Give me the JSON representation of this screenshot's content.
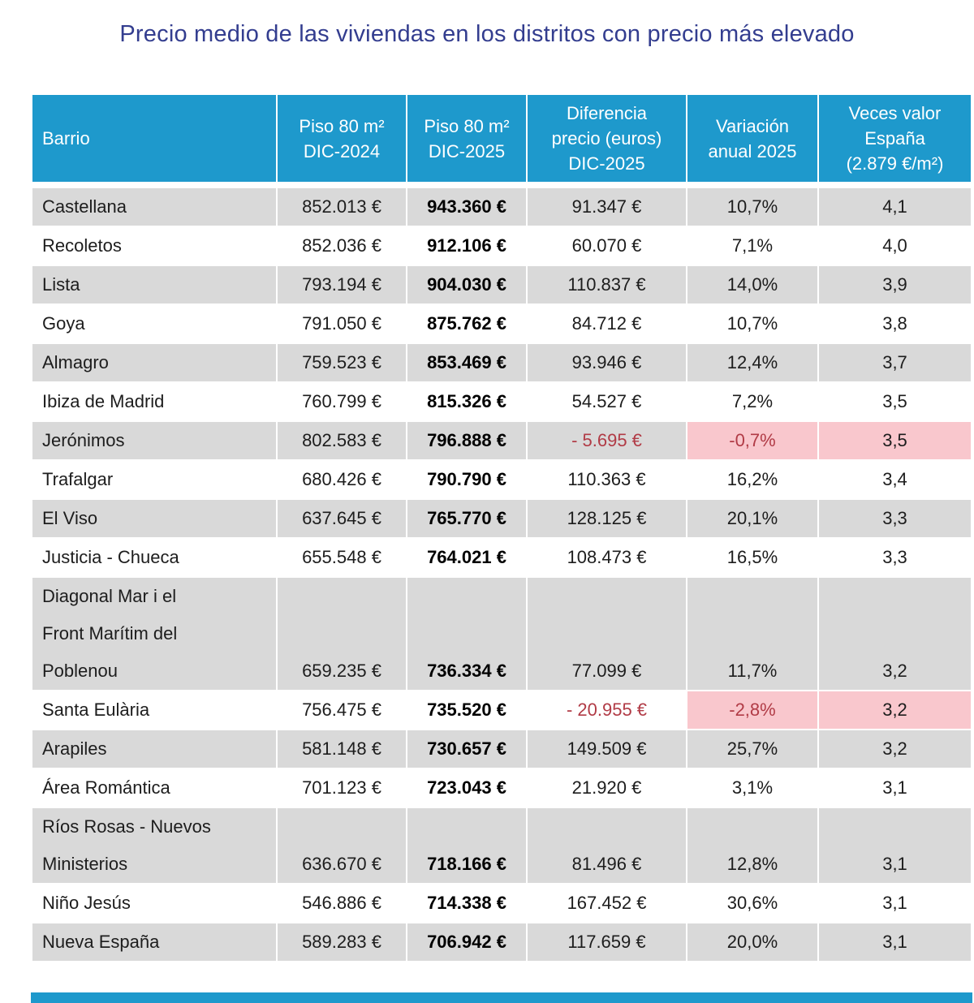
{
  "title": "Precio medio de las viviendas en los distritos con precio más elevado",
  "colors": {
    "header_bg": "#1E99CC",
    "title_text": "#333D8F",
    "row_gray": "#D9D9D9",
    "negative_highlight_bg": "#F9C7CD",
    "negative_text": "#B13B46",
    "footer_bar": "#1E99CC"
  },
  "chart_data": {
    "type": "table",
    "title": "Precio medio de las viviendas en los distritos con precio más elevado",
    "columns": [
      "Barrio",
      "Piso 80 m²\nDIC-2024",
      "Piso 80 m²\nDIC-2025",
      "Diferencia\nprecio (euros)\nDIC-2025",
      "Variación\nanual 2025",
      "Veces valor\nEspaña\n(2.879 €/m²)"
    ],
    "rows": [
      {
        "cells": [
          "Castellana",
          "852.013 €",
          "943.360 €",
          "91.347 €",
          "10,7%",
          "4,1"
        ],
        "negative": false
      },
      {
        "cells": [
          "Recoletos",
          "852.036 €",
          "912.106 €",
          "60.070 €",
          "7,1%",
          "4,0"
        ],
        "negative": false
      },
      {
        "cells": [
          "Lista",
          "793.194 €",
          "904.030 €",
          "110.837 €",
          "14,0%",
          "3,9"
        ],
        "negative": false
      },
      {
        "cells": [
          "Goya",
          "791.050 €",
          "875.762 €",
          "84.712 €",
          "10,7%",
          "3,8"
        ],
        "negative": false
      },
      {
        "cells": [
          "Almagro",
          "759.523 €",
          "853.469 €",
          "93.946 €",
          "12,4%",
          "3,7"
        ],
        "negative": false
      },
      {
        "cells": [
          "Ibiza de Madrid",
          "760.799 €",
          "815.326 €",
          "54.527 €",
          "7,2%",
          "3,5"
        ],
        "negative": false
      },
      {
        "cells": [
          "Jerónimos",
          "802.583 €",
          "796.888 €",
          "- 5.695 €",
          "-0,7%",
          "3,5"
        ],
        "negative": true
      },
      {
        "cells": [
          "Trafalgar",
          "680.426 €",
          "790.790 €",
          "110.363 €",
          "16,2%",
          "3,4"
        ],
        "negative": false
      },
      {
        "cells": [
          "El Viso",
          "637.645 €",
          "765.770 €",
          "128.125 €",
          "20,1%",
          "3,3"
        ],
        "negative": false
      },
      {
        "cells": [
          "Justicia - Chueca",
          "655.548 €",
          "764.021 €",
          "108.473 €",
          "16,5%",
          "3,3"
        ],
        "negative": false
      },
      {
        "cells": [
          "Diagonal Mar i el\nFront Marítim del\nPoblenou",
          "659.235 €",
          "736.334 €",
          "77.099 €",
          "11,7%",
          "3,2"
        ],
        "negative": false
      },
      {
        "cells": [
          "Santa Eulària",
          "756.475 €",
          "735.520 €",
          "- 20.955 €",
          "-2,8%",
          "3,2"
        ],
        "negative": true
      },
      {
        "cells": [
          "Arapiles",
          "581.148 €",
          "730.657 €",
          "149.509 €",
          "25,7%",
          "3,2"
        ],
        "negative": false
      },
      {
        "cells": [
          "Área Romántica",
          "701.123 €",
          "723.043 €",
          "21.920 €",
          "3,1%",
          "3,1"
        ],
        "negative": false
      },
      {
        "cells": [
          "Ríos Rosas - Nuevos\nMinisterios",
          "636.670 €",
          "718.166 €",
          "81.496 €",
          "12,8%",
          "3,1"
        ],
        "negative": false
      },
      {
        "cells": [
          "Niño Jesús",
          "546.886 €",
          "714.338 €",
          "167.452 €",
          "30,6%",
          "3,1"
        ],
        "negative": false
      },
      {
        "cells": [
          "Nueva España",
          "589.283 €",
          "706.942 €",
          "117.659 €",
          "20,0%",
          "3,1"
        ],
        "negative": false
      }
    ],
    "layout_hints": {
      "bold_column_index": 2,
      "striping": "alternating gray/white starting gray",
      "negative_rows_highlight_columns": [
        4,
        5
      ]
    }
  }
}
